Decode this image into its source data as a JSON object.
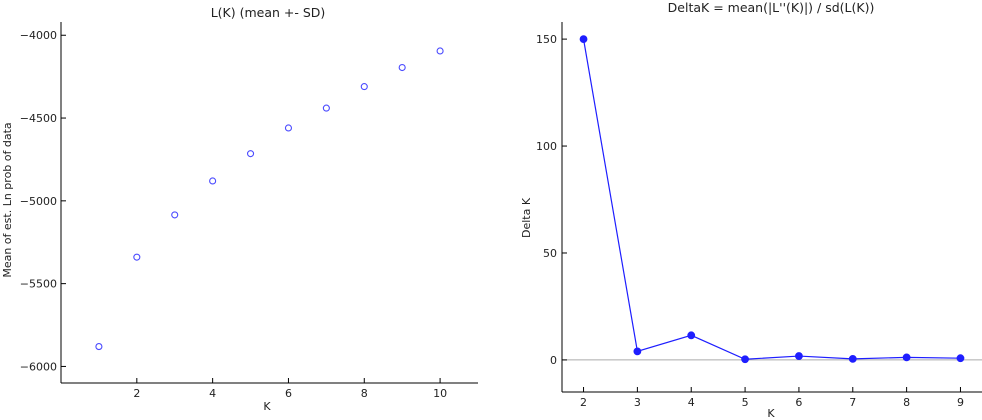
{
  "chart_data": [
    {
      "type": "scatter",
      "title": "L(K) (mean +- SD)",
      "xlabel": "K",
      "ylabel": "Mean of est. Ln prob of data",
      "x": [
        1,
        2,
        3,
        4,
        5,
        6,
        7,
        8,
        9,
        10
      ],
      "values": [
        -5880,
        -5340,
        -5085,
        -4880,
        -4715,
        -4560,
        -4440,
        -4310,
        -4195,
        -4095
      ],
      "xticks": [
        "2",
        "4",
        "6",
        "8",
        "10"
      ],
      "yticks": [
        "-4000",
        "-4500",
        "-5000",
        "-5500",
        "-6000"
      ],
      "xlim": [
        0,
        11
      ],
      "ylim": [
        -6100,
        -3920
      ],
      "marker_color": "#4a4aff"
    },
    {
      "type": "line",
      "title": "DeltaK = mean(|L''(K)|) / sd(L(K))",
      "xlabel": "K",
      "ylabel": "Delta K",
      "x": [
        2,
        3,
        4,
        5,
        6,
        7,
        8,
        9
      ],
      "values": [
        150,
        4,
        11.5,
        0.3,
        1.8,
        0.5,
        1.2,
        0.8
      ],
      "xticks": [
        "2",
        "3",
        "4",
        "5",
        "6",
        "7",
        "8",
        "9"
      ],
      "yticks": [
        "150",
        "100",
        "50",
        "0"
      ],
      "xlim": [
        1.6,
        9.4
      ],
      "ylim": [
        -15,
        158
      ],
      "line_color": "#1e1eff",
      "zero_line_color": "#aaaaaa"
    }
  ]
}
